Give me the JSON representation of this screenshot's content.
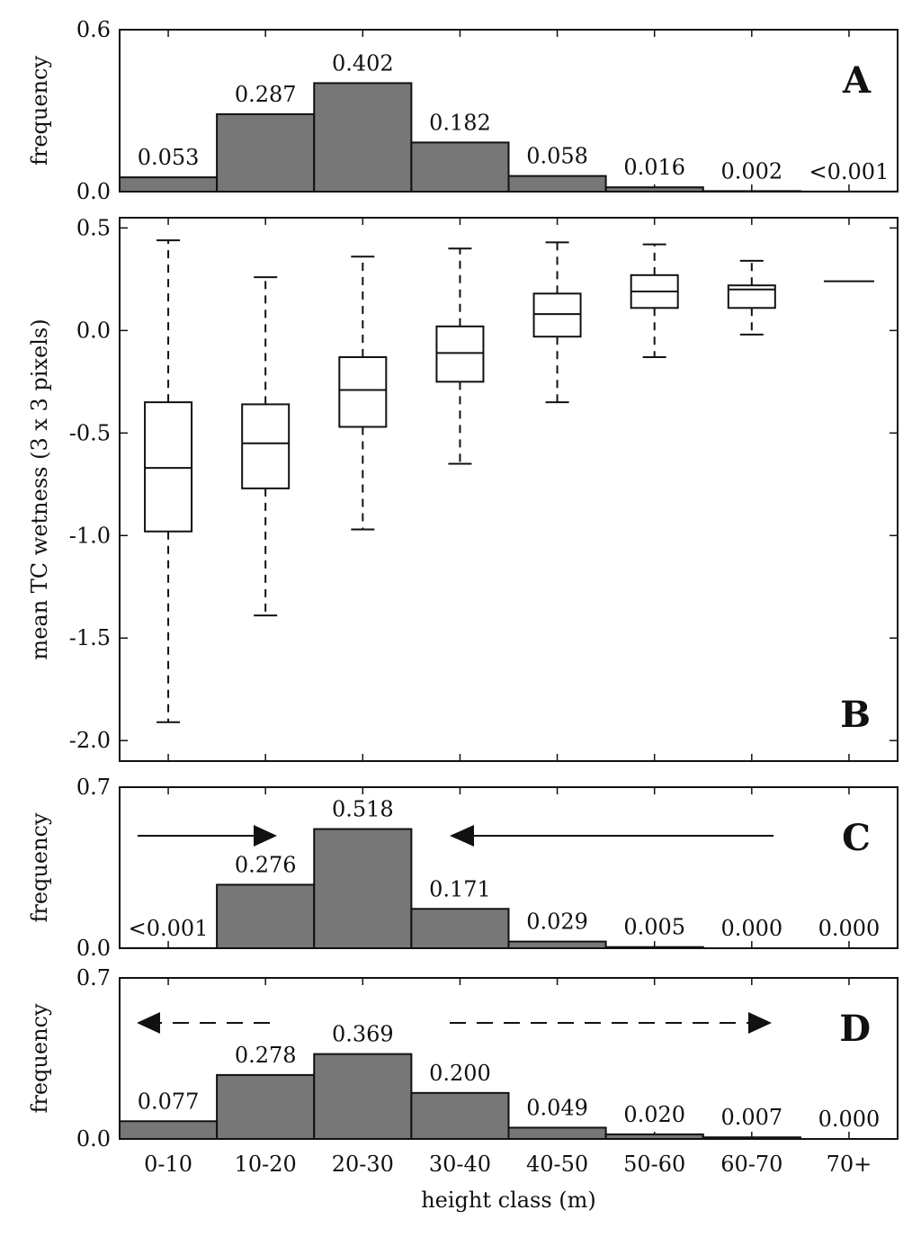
{
  "chart_data": [
    {
      "panel": "A",
      "type": "bar",
      "letter": "A",
      "ylabel": "frequency",
      "ylim": [
        0,
        0.6
      ],
      "yticks": [
        "0.0",
        "0.6"
      ],
      "categories": [
        "0-10",
        "10-20",
        "20-30",
        "30-40",
        "40-50",
        "50-60",
        "60-70",
        "70+"
      ],
      "values": [
        0.053,
        0.287,
        0.402,
        0.182,
        0.058,
        0.016,
        0.002,
        0.0005
      ],
      "labels": [
        "0.053",
        "0.287",
        "0.402",
        "0.182",
        "0.058",
        "0.016",
        "0.002",
        "<0.001"
      ]
    },
    {
      "panel": "B",
      "type": "boxplot",
      "letter": "B",
      "ylabel": "mean TC wetness (3 x 3 pixels)",
      "ylim": [
        -2.1,
        0.55
      ],
      "yticks": [
        "-2.0",
        "-1.5",
        "-1.0",
        "-0.5",
        "0.0",
        "0.5"
      ],
      "categories": [
        "0-10",
        "10-20",
        "20-30",
        "30-40",
        "40-50",
        "50-60",
        "60-70",
        "70+"
      ],
      "boxes": [
        {
          "whisker_low": -1.91,
          "q1": -0.98,
          "median": -0.67,
          "q3": -0.35,
          "whisker_high": 0.44
        },
        {
          "whisker_low": -1.39,
          "q1": -0.77,
          "median": -0.55,
          "q3": -0.36,
          "whisker_high": 0.26
        },
        {
          "whisker_low": -0.97,
          "q1": -0.47,
          "median": -0.29,
          "q3": -0.13,
          "whisker_high": 0.36
        },
        {
          "whisker_low": -0.65,
          "q1": -0.25,
          "median": -0.11,
          "q3": 0.02,
          "whisker_high": 0.4
        },
        {
          "whisker_low": -0.35,
          "q1": -0.03,
          "median": 0.08,
          "q3": 0.18,
          "whisker_high": 0.43
        },
        {
          "whisker_low": -0.13,
          "q1": 0.11,
          "median": 0.19,
          "q3": 0.27,
          "whisker_high": 0.42
        },
        {
          "whisker_low": -0.02,
          "q1": 0.11,
          "median": 0.2,
          "q3": 0.22,
          "whisker_high": 0.34
        },
        {
          "whisker_low": 0.24,
          "q1": 0.24,
          "median": 0.24,
          "q3": 0.24,
          "whisker_high": 0.24
        }
      ]
    },
    {
      "panel": "C",
      "type": "bar",
      "letter": "C",
      "ylabel": "frequency",
      "ylim": [
        0,
        0.7
      ],
      "yticks": [
        "0.0",
        "0.7"
      ],
      "categories": [
        "0-10",
        "10-20",
        "20-30",
        "30-40",
        "40-50",
        "50-60",
        "60-70",
        "70+"
      ],
      "values": [
        0.0005,
        0.276,
        0.518,
        0.171,
        0.029,
        0.005,
        0.0,
        0.0
      ],
      "labels": [
        "<0.001",
        "0.276",
        "0.518",
        "0.171",
        "0.029",
        "0.005",
        "0.000",
        "0.000"
      ],
      "arrows": "solid arrows pointing inward toward 20-30"
    },
    {
      "panel": "D",
      "type": "bar",
      "letter": "D",
      "ylabel": "frequency",
      "xlabel": "height class (m)",
      "ylim": [
        0,
        0.7
      ],
      "yticks": [
        "0.0",
        "0.7"
      ],
      "categories": [
        "0-10",
        "10-20",
        "20-30",
        "30-40",
        "40-50",
        "50-60",
        "60-70",
        "70+"
      ],
      "values": [
        0.077,
        0.278,
        0.369,
        0.2,
        0.049,
        0.02,
        0.007,
        0.0
      ],
      "labels": [
        "0.077",
        "0.278",
        "0.369",
        "0.200",
        "0.049",
        "0.020",
        "0.007",
        "0.000"
      ],
      "arrows": "dashed arrows pointing outward"
    }
  ]
}
